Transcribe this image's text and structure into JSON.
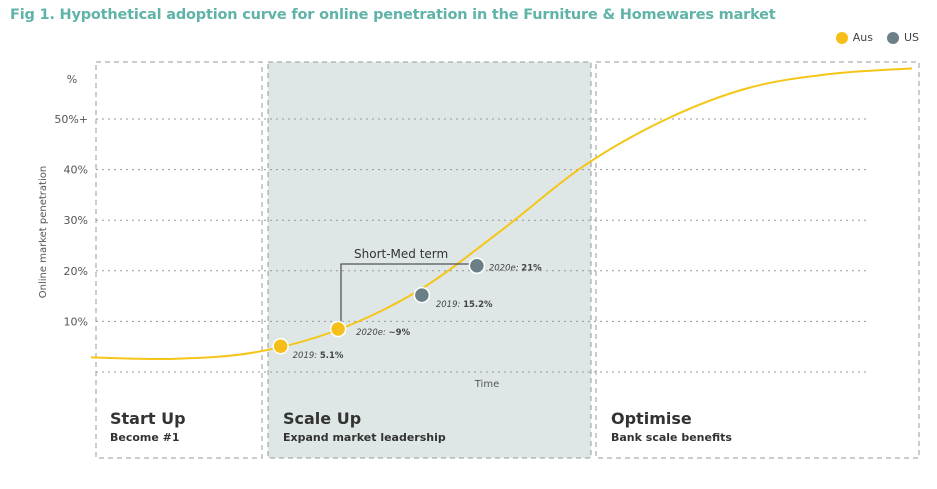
{
  "title": "Fig 1. Hypothetical adoption curve for online penetration in the Furniture & Homewares market",
  "legend": [
    {
      "label": "Aus",
      "color": "#f5be18"
    },
    {
      "label": "US",
      "color": "#6b7f87"
    }
  ],
  "colors": {
    "curve": "#f5c518",
    "aus": "#f5be18",
    "us": "#6b7f87",
    "shade": "#dfe6e6",
    "title": "#5fb3a8"
  },
  "chart_data": {
    "type": "line",
    "ylabel": "Online market penetration",
    "xlabel": "Time",
    "y_unit_label": "%",
    "yticks": [
      {
        "value": 10,
        "label": "10%"
      },
      {
        "value": 20,
        "label": "20%"
      },
      {
        "value": 30,
        "label": "30%"
      },
      {
        "value": 40,
        "label": "40%"
      },
      {
        "value": 50,
        "label": "50%+"
      }
    ],
    "ylim": [
      0,
      60
    ],
    "xlim": [
      0,
      1
    ],
    "grid": true,
    "legend_position": "top-right",
    "series": [
      {
        "name": "Aus",
        "x": [
          0.0,
          0.1,
          0.2,
          0.3,
          0.4,
          0.5,
          0.6,
          0.7,
          0.8,
          0.9,
          1.0
        ],
        "y": [
          2.9,
          2.6,
          3.9,
          8.3,
          16.2,
          28.0,
          40.7,
          49.9,
          56.1,
          58.9,
          60.0
        ]
      }
    ],
    "points": [
      {
        "series": "Aus",
        "x": 0.231,
        "y": 5.1,
        "label_prefix": "2019: ",
        "label_value": "5.1%"
      },
      {
        "series": "Aus",
        "x": 0.301,
        "y": 8.5,
        "label_prefix": "2020e: ",
        "label_value": "~9%"
      },
      {
        "series": "US",
        "x": 0.403,
        "y": 15.2,
        "label_prefix": "2019: ",
        "label_value": "15.2%"
      },
      {
        "series": "US",
        "x": 0.47,
        "y": 21,
        "label_prefix": "2020e: ",
        "label_value": "21%"
      }
    ],
    "annotation": "Short-Med term",
    "phases": [
      {
        "title": "Start Up",
        "subtitle": "Become #1"
      },
      {
        "title": "Scale Up",
        "subtitle": "Expand market leadership",
        "shaded": true
      },
      {
        "title": "Optimise",
        "subtitle": "Bank scale benefits"
      }
    ]
  }
}
